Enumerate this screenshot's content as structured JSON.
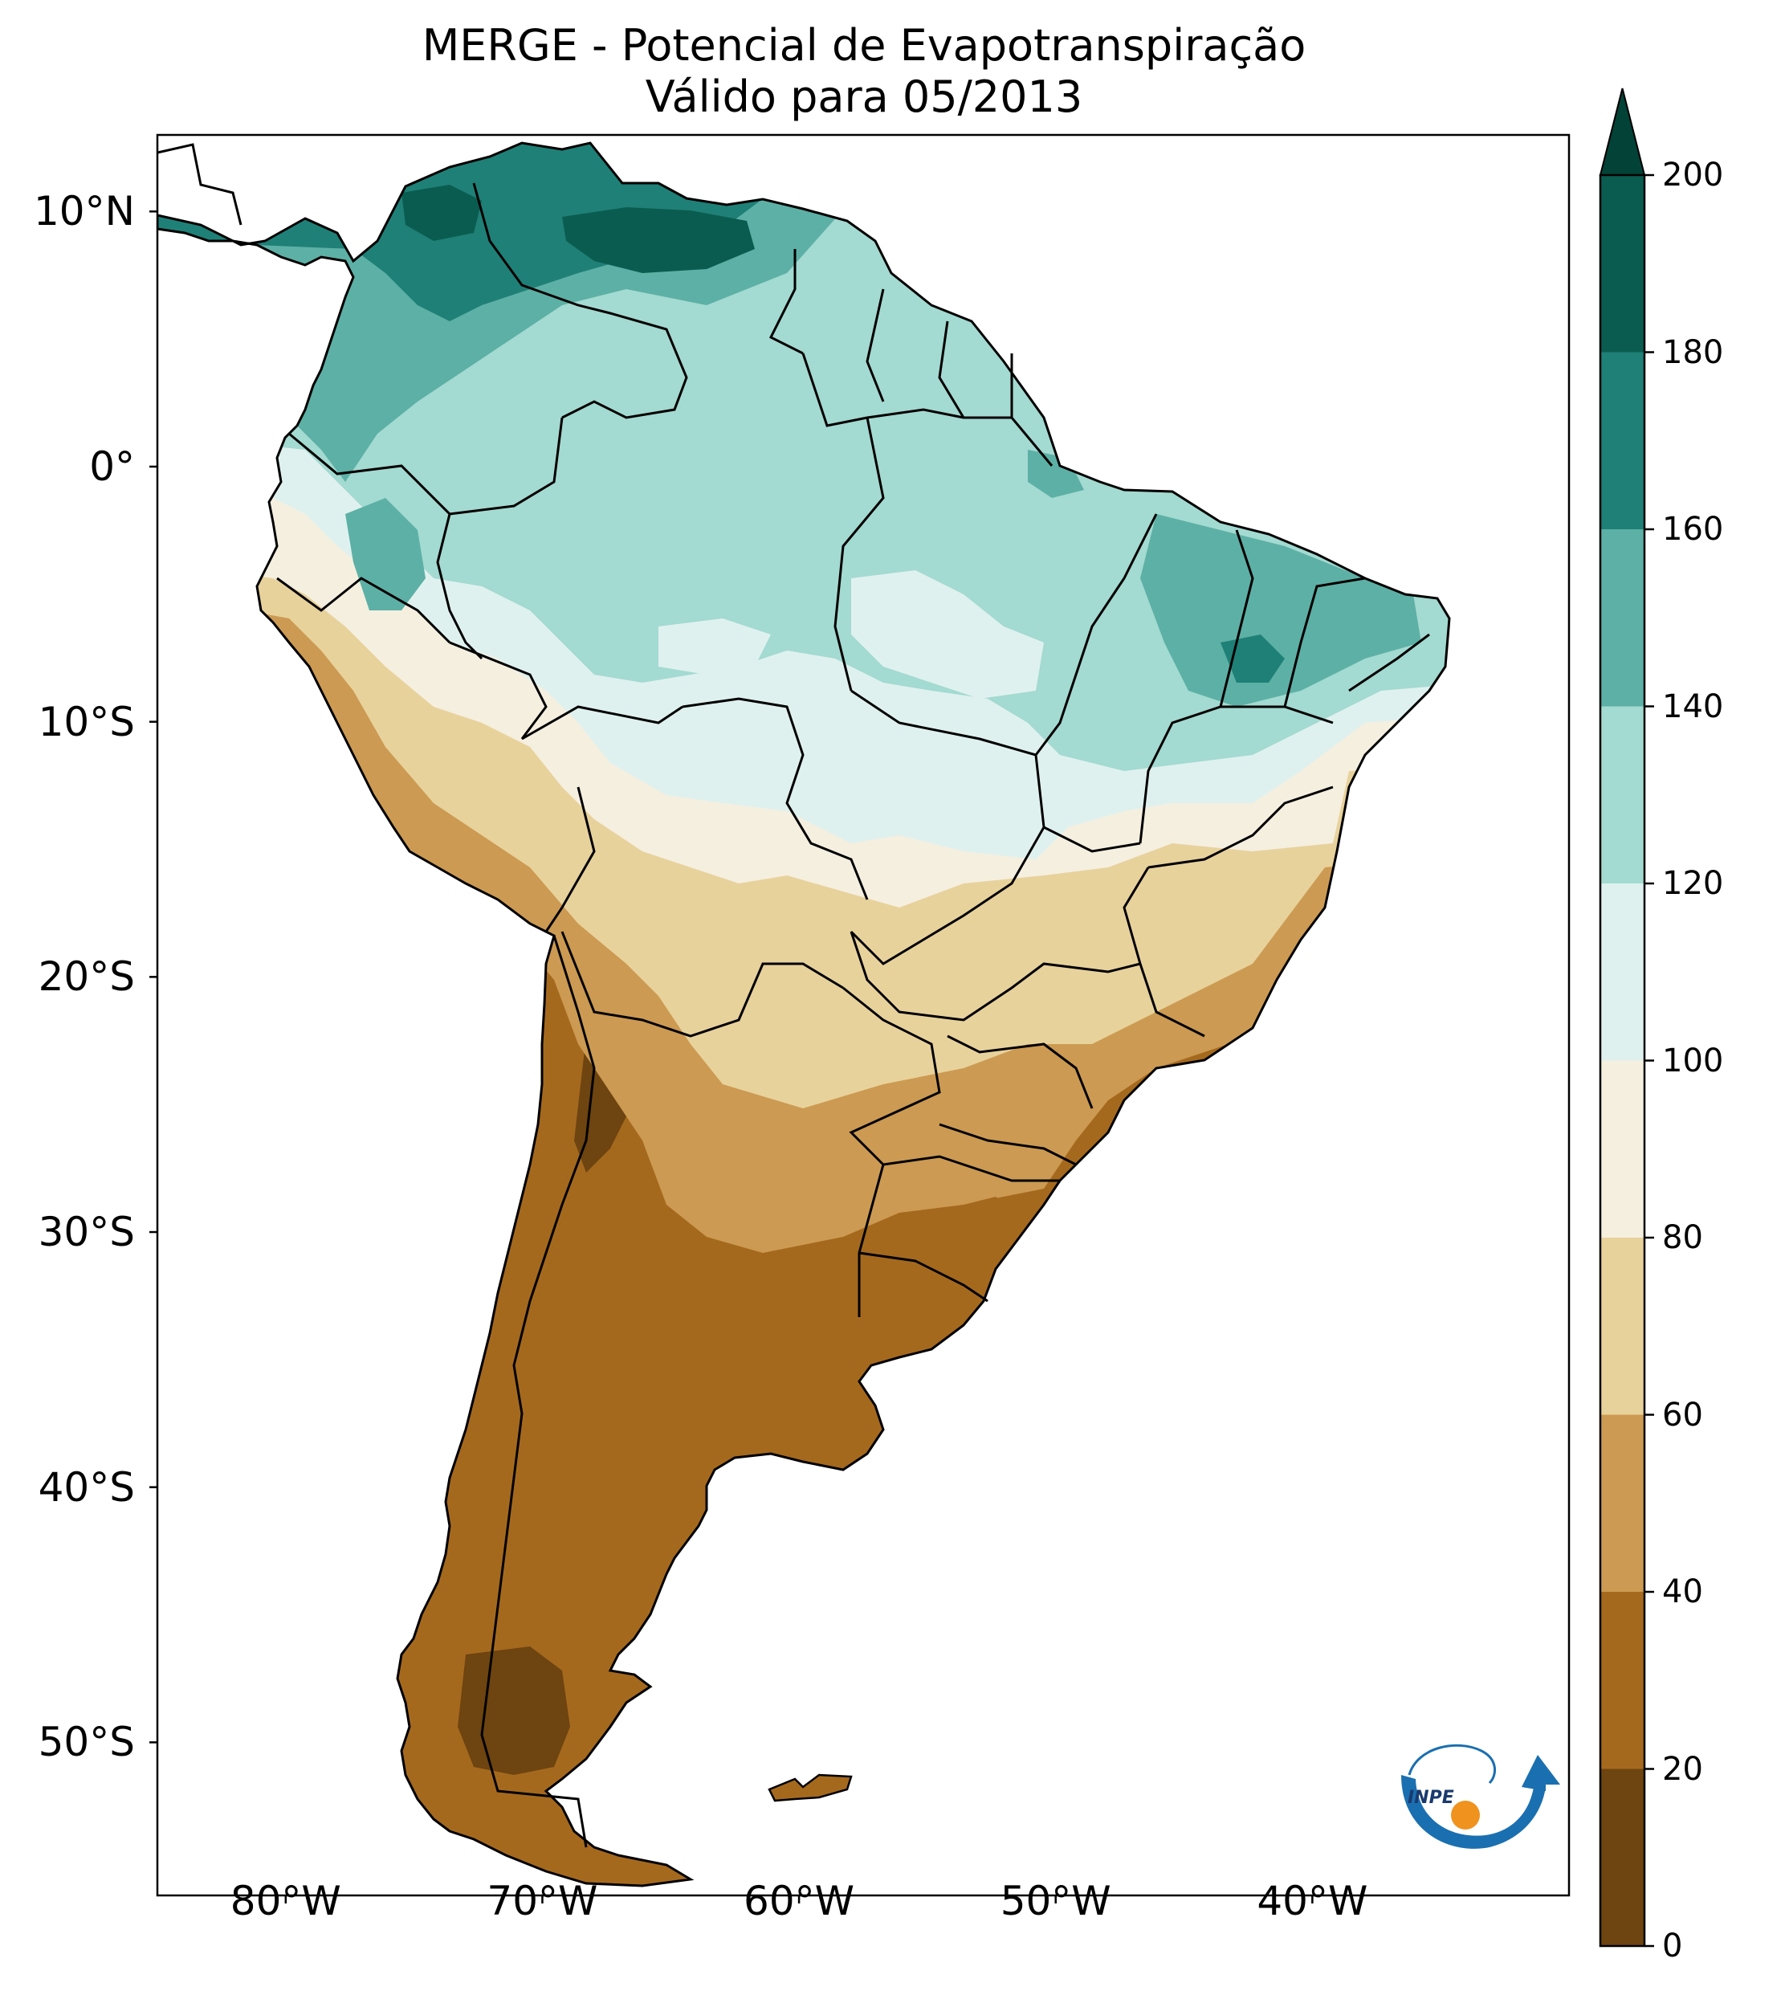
{
  "title": {
    "line1": "MERGE - Potencial de Evapotranspiração",
    "line2": "Válido para 05/2013"
  },
  "chart_data": {
    "type": "heatmap",
    "title": "MERGE - Potencial de Evapotranspiração",
    "subtitle": "Válido para 05/2013",
    "region": "South America",
    "lon_range": [
      -85,
      -30
    ],
    "lat_range": [
      -56,
      13
    ],
    "lon_ticks": [
      "80°W",
      "70°W",
      "60°W",
      "50°W",
      "40°W"
    ],
    "lat_ticks": [
      "10°N",
      "0°",
      "10°S",
      "20°S",
      "30°S",
      "40°S",
      "50°S"
    ],
    "colorbar": {
      "min": 0,
      "max": 200,
      "extend": "max",
      "ticks": [
        "0",
        "20",
        "40",
        "60",
        "80",
        "100",
        "120",
        "140",
        "160",
        "180",
        "200"
      ],
      "levels": [
        0,
        20,
        40,
        60,
        80,
        100,
        120,
        140,
        160,
        180,
        200
      ],
      "colors": [
        "#6e4410",
        "#a5691e",
        "#cc9a52",
        "#e8d29c",
        "#f5efe0",
        "#dff1ef",
        "#a3dad1",
        "#5db0a5",
        "#1f8077",
        "#0b5c50",
        "#034236"
      ],
      "extend_color": "#034236"
    },
    "regions_sample": [
      {
        "area": "northern Venezuela / Colombia coast",
        "range": "160-200"
      },
      {
        "area": "Amazon basin",
        "range": "120-140"
      },
      {
        "area": "northeast Brazil",
        "range": "120-160"
      },
      {
        "area": "central Brazil",
        "range": "80-120"
      },
      {
        "area": "southeast Brazil",
        "range": "40-80"
      },
      {
        "area": "Argentina / Patagonia",
        "range": "0-40"
      }
    ]
  },
  "logo": {
    "name": "INPE",
    "text": "INPE"
  },
  "colors": {
    "background": "#ffffff",
    "frame": "#000000",
    "border_lines": "#000000"
  }
}
